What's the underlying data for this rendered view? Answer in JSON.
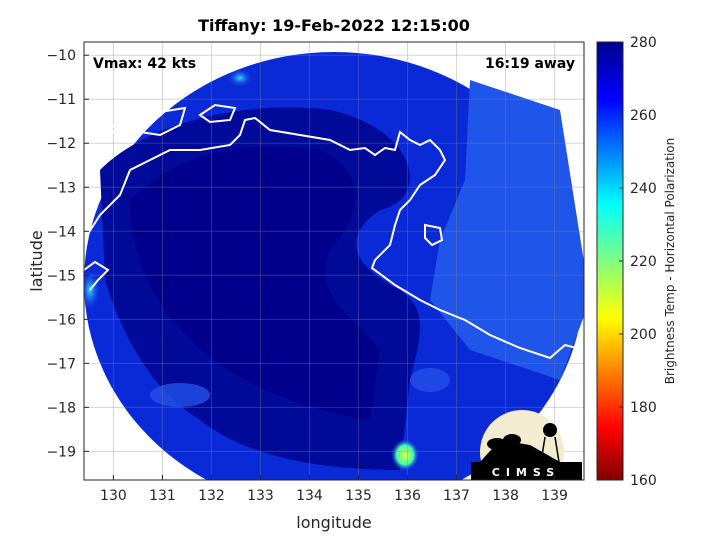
{
  "chart_data": {
    "type": "heatmap",
    "title": "Tiffany: 19-Feb-2022 12:15:00",
    "xlabel": "longitude",
    "ylabel": "latitude",
    "xlim": [
      129.4,
      139.6
    ],
    "ylim": [
      -19.65,
      -9.7
    ],
    "xticks": [
      130,
      131,
      132,
      133,
      134,
      135,
      136,
      137,
      138,
      139
    ],
    "yticks": [
      -10,
      -11,
      -12,
      -13,
      -14,
      -15,
      -16,
      -17,
      -18,
      -19
    ],
    "grid": true,
    "annotations": {
      "vmax": "Vmax: 42 kts",
      "distance": "16:19 away"
    },
    "colorbar": {
      "label": "Brightness Temp - Horizontal Polarization",
      "range": [
        160,
        280
      ],
      "ticks": [
        160,
        180,
        200,
        220,
        240,
        260,
        280
      ],
      "colormap": "jet"
    }
  },
  "logo": {
    "text": "CIMSS"
  },
  "colors": {
    "interior": "#00008f",
    "ocean_blue": "#1a40e0",
    "coastline": "#ffffff"
  }
}
